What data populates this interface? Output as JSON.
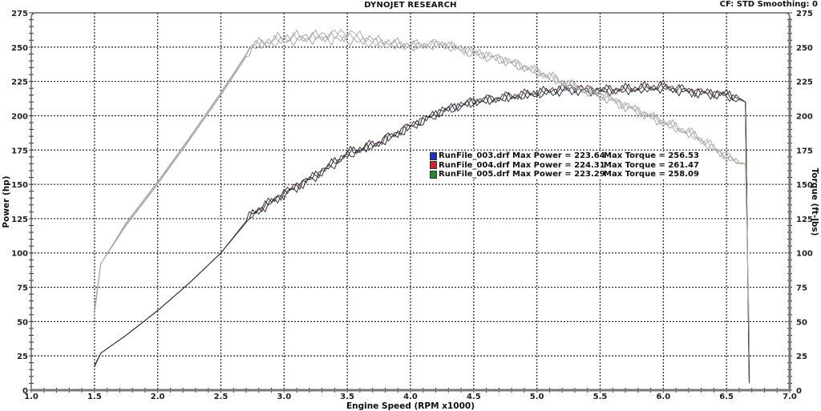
{
  "header": {
    "title": "DYNOJET RESEARCH",
    "cf_info": "CF: STD  Smoothing: 0"
  },
  "axes": {
    "x_title": "Engine Speed (RPM x1000)",
    "y_left_title": "Power (hp)",
    "y_right_title": "Torque (ft-lbs)",
    "x_ticks": [
      "1.0",
      "1.5",
      "2.0",
      "2.5",
      "3.0",
      "3.5",
      "4.0",
      "4.5",
      "5.0",
      "5.5",
      "6.0",
      "6.5",
      "7.0"
    ],
    "y_ticks": [
      "0",
      "25",
      "50",
      "75",
      "100",
      "125",
      "150",
      "175",
      "200",
      "225",
      "250",
      "275"
    ]
  },
  "legend": [
    {
      "color": "#2233bb",
      "power": "RunFile_003.drf Max Power = 223.64",
      "torque": "Max Torque = 256.53"
    },
    {
      "color": "#cc2233",
      "power": "RunFile_004.drf Max Power = 224.31",
      "torque": "Max Torque = 261.47"
    },
    {
      "color": "#228833",
      "power": "RunFile_005.drf Max Power = 223.29",
      "torque": "Max Torque = 258.09"
    }
  ],
  "colors": {
    "power_line": "#2a2a2a",
    "torque_line": "#a8a8a8",
    "grid": "#333333",
    "axis": "#777777"
  },
  "chart_data": {
    "type": "line",
    "title": "DYNOJET RESEARCH",
    "subtitle": "CF: STD  Smoothing: 0",
    "xlabel": "Engine Speed (RPM x1000)",
    "ylabel": "Power (hp)",
    "ylabel_right": "Torque (ft-lbs)",
    "xlim": [
      1.0,
      7.0
    ],
    "ylim": [
      0,
      275
    ],
    "ylim_right": [
      0,
      275
    ],
    "grid": true,
    "legend_position": "center-right (inside plot)",
    "x": [
      1.5,
      1.55,
      1.75,
      2.0,
      2.25,
      2.5,
      2.75,
      3.0,
      3.25,
      3.5,
      3.75,
      4.0,
      4.25,
      4.5,
      4.75,
      5.0,
      5.25,
      5.5,
      5.75,
      6.0,
      6.25,
      6.5,
      6.6,
      6.65,
      6.68
    ],
    "series": [
      {
        "name": "RunFile_003.drf Power (hp)",
        "axis": "left",
        "max": 223.64,
        "values": [
          17,
          27,
          40,
          58,
          78,
          100,
          128,
          143,
          156,
          172,
          180,
          192,
          203,
          210,
          213,
          216,
          219,
          218,
          219,
          220,
          217,
          215,
          212,
          210,
          5
        ]
      },
      {
        "name": "RunFile_004.drf Power (hp)",
        "axis": "left",
        "max": 224.31,
        "values": [
          18,
          27,
          40,
          58,
          78,
          100,
          129,
          144,
          157,
          173,
          181,
          193,
          204,
          211,
          214,
          217,
          221,
          219,
          220,
          222,
          218,
          216,
          213,
          210,
          5
        ]
      },
      {
        "name": "RunFile_005.drf Power (hp)",
        "axis": "left",
        "max": 223.29,
        "values": [
          18,
          27,
          40,
          58,
          78,
          100,
          128,
          143,
          156,
          171,
          180,
          192,
          203,
          210,
          213,
          216,
          219,
          218,
          219,
          221,
          217,
          215,
          212,
          210,
          5
        ]
      },
      {
        "name": "RunFile_003.drf Torque (ft-lbs)",
        "axis": "right",
        "max": 256.53,
        "values": [
          55,
          92,
          120,
          150,
          182,
          215,
          250,
          254,
          256,
          255,
          252,
          250,
          252,
          245,
          240,
          232,
          222,
          215,
          205,
          195,
          185,
          170,
          165,
          165,
          40
        ]
      },
      {
        "name": "RunFile_004.drf Torque (ft-lbs)",
        "axis": "right",
        "max": 261.47,
        "values": [
          60,
          92,
          122,
          152,
          184,
          217,
          252,
          258,
          259,
          261,
          255,
          252,
          253,
          247,
          241,
          233,
          223,
          216,
          206,
          196,
          186,
          171,
          166,
          165,
          40
        ]
      },
      {
        "name": "RunFile_005.drf Torque (ft-lbs)",
        "axis": "right",
        "max": 258.09,
        "values": [
          58,
          92,
          121,
          151,
          183,
          216,
          251,
          256,
          257,
          258,
          253,
          251,
          252,
          246,
          240,
          232,
          222,
          215,
          205,
          195,
          185,
          170,
          165,
          165,
          40
        ]
      }
    ]
  }
}
